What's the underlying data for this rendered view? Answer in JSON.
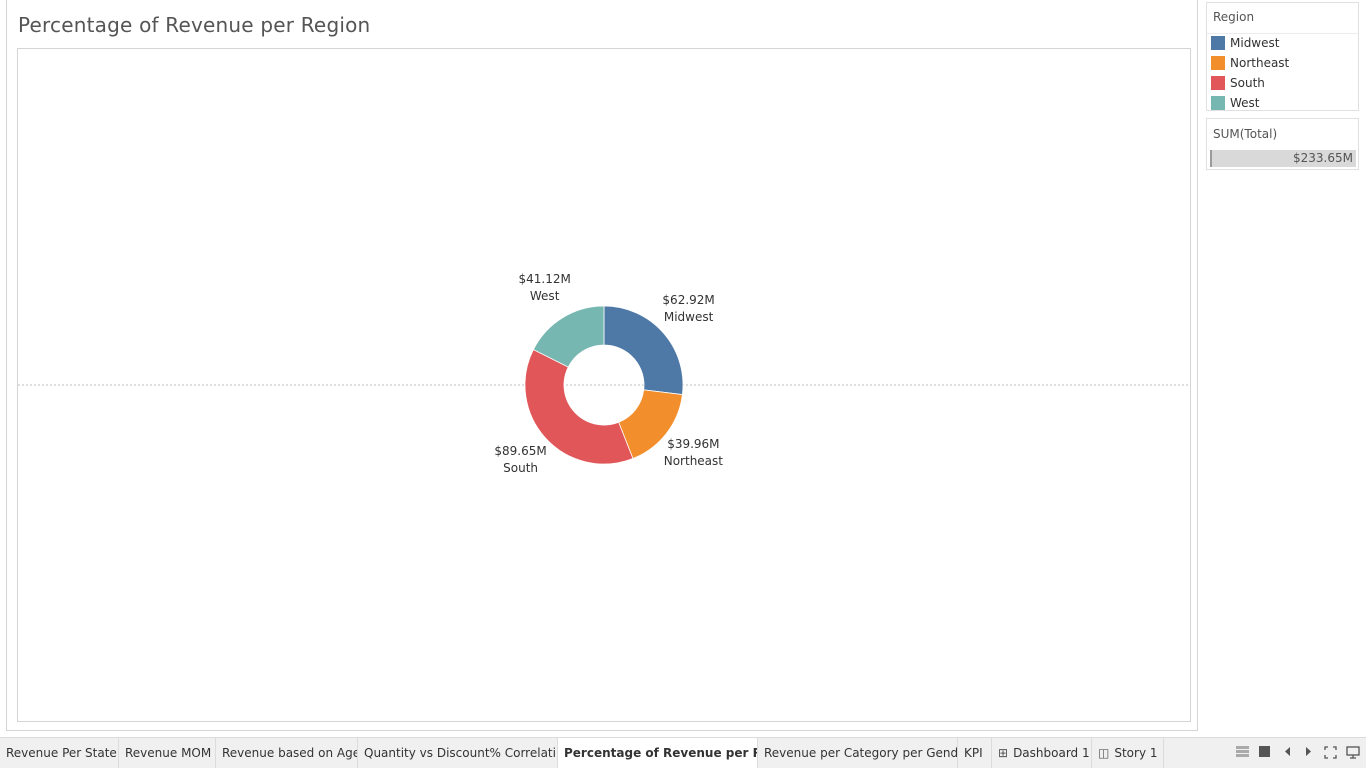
{
  "worksheet": {
    "title": "Percentage of Revenue per Region"
  },
  "legend": {
    "title": "Region",
    "items": [
      {
        "label": "Midwest",
        "color": "#4e79a7"
      },
      {
        "label": "Northeast",
        "color": "#f28e2b"
      },
      {
        "label": "South",
        "color": "#e15759"
      },
      {
        "label": "West",
        "color": "#76b7b2"
      }
    ]
  },
  "size_legend": {
    "title": "SUM(Total)",
    "value": "$233.65M"
  },
  "chart_data": {
    "type": "pie",
    "title": "Percentage of Revenue per Region",
    "donut": true,
    "total": 233.65,
    "unit": "$M",
    "categories": [
      "Midwest",
      "Northeast",
      "South",
      "West"
    ],
    "values": [
      62.92,
      39.96,
      89.65,
      41.12
    ],
    "value_labels": [
      "$62.92M",
      "$39.96M",
      "$89.65M",
      "$41.12M"
    ],
    "colors": [
      "#4e79a7",
      "#f28e2b",
      "#e15759",
      "#76b7b2"
    ],
    "start": "top",
    "direction": "clockwise"
  },
  "tabs": [
    {
      "label": "Revenue Per State",
      "active": false,
      "icon": ""
    },
    {
      "label": "Revenue MOM",
      "active": false,
      "icon": ""
    },
    {
      "label": "Revenue based on Age",
      "active": false,
      "icon": ""
    },
    {
      "label": "Quantity vs Discount% Correlati...",
      "active": false,
      "icon": ""
    },
    {
      "label": "Percentage of Revenue per Re...",
      "active": true,
      "icon": ""
    },
    {
      "label": "Revenue per Category per Gender",
      "active": false,
      "icon": ""
    },
    {
      "label": "KPI",
      "active": false,
      "icon": ""
    },
    {
      "label": "Dashboard 1",
      "active": false,
      "icon": "dashboard-icon"
    },
    {
      "label": "Story 1",
      "active": false,
      "icon": "story-icon"
    }
  ],
  "nav_icons": [
    "sheet-sorter-icon",
    "filmstrip-icon",
    "previous-sheet-icon",
    "next-sheet-icon",
    "fit-icon",
    "presentation-icon"
  ]
}
